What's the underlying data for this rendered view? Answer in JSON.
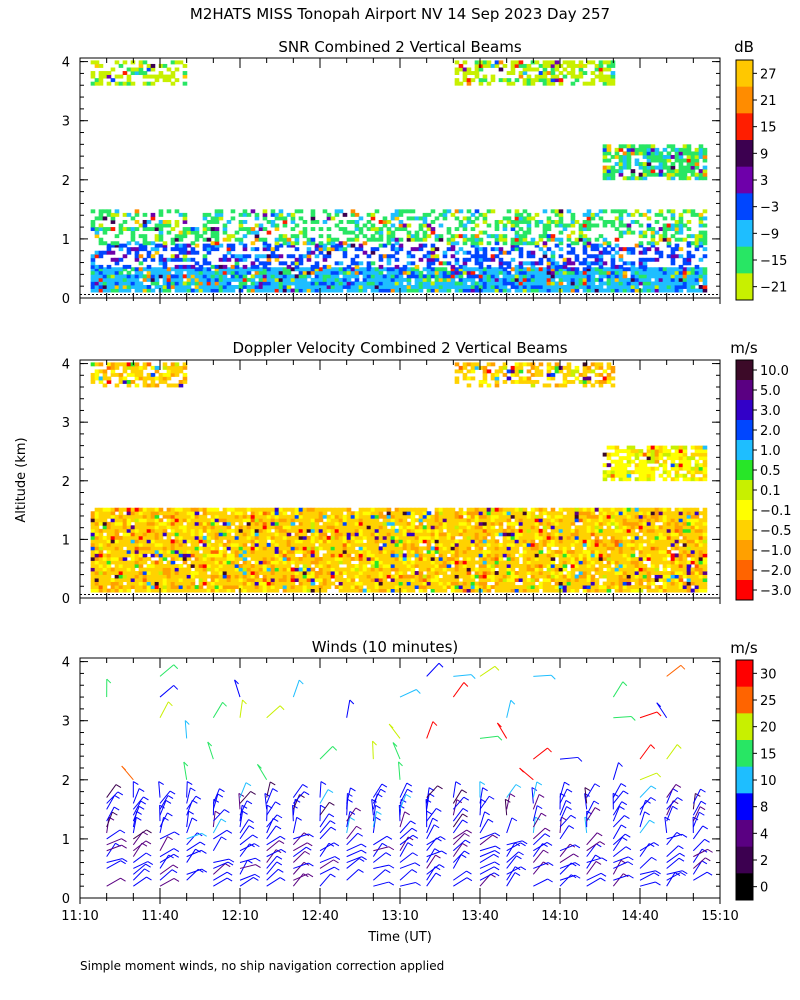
{
  "page": {
    "title": "M2HATS MISS Tonopah Airport NV  14 Sep 2023 Day 257",
    "y_axis_label": "Altitude (km)",
    "x_axis_label": "Time (UT)",
    "footnote": "Simple moment winds, no ship navigation correction applied"
  },
  "chart_data": [
    {
      "type": "heatmap",
      "title": "SNR Combined 2 Vertical Beams",
      "colorbar_unit": "dB",
      "colorbar_labels": [
        "27",
        "21",
        "15",
        "9",
        "3",
        "−3",
        "−9",
        "−15",
        "−21"
      ],
      "colorbar_colors": [
        "#ffc800",
        "#ff8c00",
        "#ff1e00",
        "#3c0050",
        "#6e00aa",
        "#0046ff",
        "#1ebeff",
        "#28e664",
        "#c8f000"
      ],
      "xlim": [
        "11:10",
        "15:10"
      ],
      "ylim": [
        0,
        4
      ],
      "yticks": [
        0,
        1,
        2,
        3,
        4
      ],
      "layers": [
        {
          "altitude_km": [
            0.1,
            0.5
          ],
          "color": "#1ebeff"
        },
        {
          "altitude_km": [
            0.5,
            0.9
          ],
          "color": "#0046ff"
        },
        {
          "altitude_km": [
            0.9,
            1.5
          ],
          "color": "#28e664"
        },
        {
          "altitude_km": [
            2.0,
            2.6
          ],
          "color": "#28e664"
        },
        {
          "altitude_km": [
            3.6,
            4.0
          ],
          "color": "#c8f000"
        }
      ]
    },
    {
      "type": "heatmap",
      "title": "Doppler Velocity Combined 2 Vertical Beams",
      "colorbar_unit": "m/s",
      "colorbar_labels": [
        "10.0",
        "5.0",
        "3.0",
        "2.0",
        "1.0",
        "0.5",
        "0.1",
        "−0.1",
        "−0.5",
        "−1.0",
        "−2.0",
        "−3.0"
      ],
      "colorbar_colors": [
        "#3c0a28",
        "#5a0082",
        "#3200c8",
        "#0046ff",
        "#1ebeff",
        "#28e628",
        "#c8f000",
        "#ffff00",
        "#ffd200",
        "#ffa000",
        "#ff6400",
        "#ff0000"
      ],
      "xlim": [
        "11:10",
        "15:10"
      ],
      "ylim": [
        0,
        4
      ],
      "yticks": [
        0,
        1,
        2,
        3,
        4
      ],
      "layers": [
        {
          "altitude_km": [
            0.1,
            1.5
          ],
          "color": "#ffd200"
        },
        {
          "altitude_km": [
            2.0,
            2.6
          ],
          "color": "#ffff00"
        },
        {
          "altitude_km": [
            3.6,
            4.0
          ],
          "color": "#ffd200"
        }
      ]
    },
    {
      "type": "scatter",
      "title": "Winds (10 minutes)",
      "colorbar_unit": "m/s",
      "colorbar_labels": [
        "30",
        "25",
        "20",
        "15",
        "10",
        "8",
        "4",
        "2",
        "0"
      ],
      "colorbar_colors": [
        "#ff0000",
        "#ff6400",
        "#c8f000",
        "#28e664",
        "#1ebeff",
        "#0000ff",
        "#5a0082",
        "#3c0050",
        "#000000"
      ],
      "xlim": [
        "11:10",
        "15:10"
      ],
      "ylim": [
        0,
        4
      ],
      "yticks": [
        0,
        1,
        2,
        3,
        4
      ],
      "xticks": [
        "11:10",
        "11:40",
        "12:10",
        "12:40",
        "13:10",
        "13:40",
        "14:10",
        "14:40",
        "15:10"
      ]
    }
  ]
}
